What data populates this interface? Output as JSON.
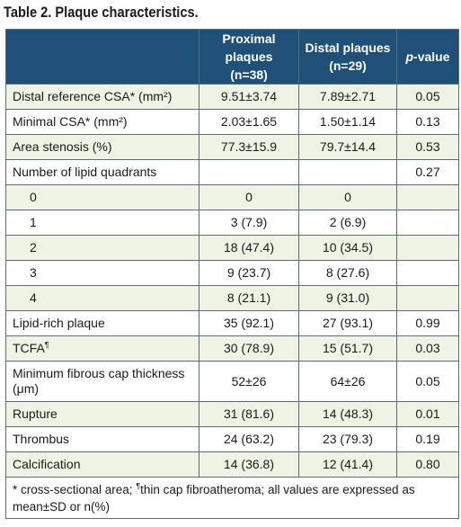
{
  "title": "Table 2. Plaque characteristics.",
  "headers": {
    "col1": "",
    "col2": "Proximal plaques (n=38)",
    "col3": "Distal plaques (n=29)",
    "col4_italic": "p",
    "col4_rest": "-value"
  },
  "rows": [
    {
      "label": "Distal reference CSA* (mm²)",
      "proximal": "9.51±3.74",
      "distal": "7.89±2.71",
      "p": "0.05"
    },
    {
      "label": "Minimal CSA* (mm²)",
      "proximal": "2.03±1.65",
      "distal": "1.50±1.14",
      "p": "0.13"
    },
    {
      "label": "Area stenosis (%)",
      "proximal": "77.3±15.9",
      "distal": "79.7±14.4",
      "p": "0.53"
    },
    {
      "label": "Number of lipid quadrants",
      "proximal": "",
      "distal": "",
      "p": "0.27"
    },
    {
      "label": "0",
      "proximal": "0",
      "distal": "0",
      "p": ""
    },
    {
      "label": "1",
      "proximal": "3 (7.9)",
      "distal": "2 (6.9)",
      "p": ""
    },
    {
      "label": "2",
      "proximal": "18 (47.4)",
      "distal": "10 (34.5)",
      "p": ""
    },
    {
      "label": "3",
      "proximal": "9 (23.7)",
      "distal": "8 (27.6)",
      "p": ""
    },
    {
      "label": "4",
      "proximal": "8 (21.1)",
      "distal": "9 (31.0)",
      "p": ""
    },
    {
      "label": "Lipid-rich plaque",
      "proximal": "35 (92.1)",
      "distal": "27 (93.1)",
      "p": "0.99"
    },
    {
      "label": "TCFA",
      "label_sup": "¶",
      "proximal": "30 (78.9)",
      "distal": "15 (51.7)",
      "p": "0.03"
    },
    {
      "label": "Minimum fibrous cap thickness (μm)",
      "proximal": "52±26",
      "distal": "64±26",
      "p": "0.05"
    },
    {
      "label": "Rupture",
      "proximal": "31 (81.6)",
      "distal": "14 (48.3)",
      "p": "0.01"
    },
    {
      "label": "Thrombus",
      "proximal": "24 (63.2)",
      "distal": "23 (79.3)",
      "p": "0.19"
    },
    {
      "label": "Calcification",
      "proximal": "14 (36.8)",
      "distal": "12 (41.4)",
      "p": "0.80"
    }
  ],
  "footnote": {
    "part1": "* cross-sectional area; ",
    "sup": "¶",
    "part2": "thin cap fibroatheroma; all values are expressed as mean±SD or n(%)"
  }
}
